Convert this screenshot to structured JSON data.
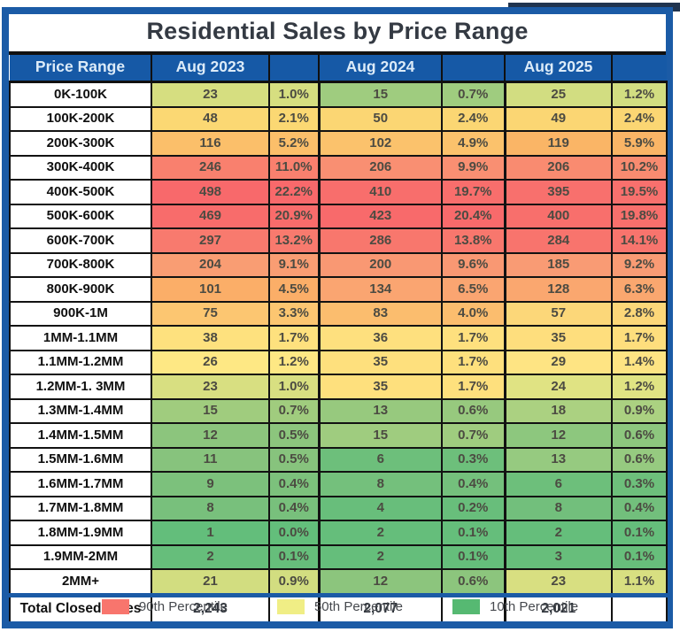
{
  "title": "Residential Sales by Price Range",
  "header": {
    "columns": [
      "Price Range",
      "Aug 2023",
      "",
      "Aug 2024",
      "",
      "Aug 2025",
      ""
    ]
  },
  "rows": [
    {
      "range": "0K-100K",
      "months": [
        {
          "count": "23",
          "pct": "1.0%",
          "color": "#d6de80"
        },
        {
          "count": "15",
          "pct": "0.7%",
          "color": "#9fcc7f"
        },
        {
          "count": "25",
          "pct": "1.2%",
          "color": "#d2dd81"
        }
      ]
    },
    {
      "range": "100K-200K",
      "months": [
        {
          "count": "48",
          "pct": "2.1%",
          "color": "#fbd873"
        },
        {
          "count": "50",
          "pct": "2.4%",
          "color": "#fbd673"
        },
        {
          "count": "49",
          "pct": "2.4%",
          "color": "#fbd673"
        }
      ]
    },
    {
      "range": "200K-300K",
      "months": [
        {
          "count": "116",
          "pct": "5.2%",
          "color": "#fbbf6a"
        },
        {
          "count": "102",
          "pct": "4.9%",
          "color": "#fbc26c"
        },
        {
          "count": "119",
          "pct": "5.9%",
          "color": "#fab566"
        }
      ]
    },
    {
      "range": "300K-400K",
      "months": [
        {
          "count": "246",
          "pct": "11.0%",
          "color": "#f9806e"
        },
        {
          "count": "206",
          "pct": "9.9%",
          "color": "#f98f72"
        },
        {
          "count": "206",
          "pct": "10.2%",
          "color": "#f98b70"
        }
      ]
    },
    {
      "range": "400K-500K",
      "months": [
        {
          "count": "498",
          "pct": "22.2%",
          "color": "#f8696b"
        },
        {
          "count": "410",
          "pct": "19.7%",
          "color": "#f86e6c"
        },
        {
          "count": "395",
          "pct": "19.5%",
          "color": "#f8706d"
        }
      ]
    },
    {
      "range": "500K-600K",
      "months": [
        {
          "count": "469",
          "pct": "20.9%",
          "color": "#f86c6b"
        },
        {
          "count": "423",
          "pct": "20.4%",
          "color": "#f86a6b"
        },
        {
          "count": "400",
          "pct": "19.8%",
          "color": "#f86f6c"
        }
      ]
    },
    {
      "range": "600K-700K",
      "months": [
        {
          "count": "297",
          "pct": "13.2%",
          "color": "#f87a6e"
        },
        {
          "count": "286",
          "pct": "13.8%",
          "color": "#f8776d"
        },
        {
          "count": "284",
          "pct": "14.1%",
          "color": "#f8746d"
        }
      ]
    },
    {
      "range": "700K-800K",
      "months": [
        {
          "count": "204",
          "pct": "9.1%",
          "color": "#f99d73"
        },
        {
          "count": "200",
          "pct": "9.6%",
          "color": "#f99873"
        },
        {
          "count": "185",
          "pct": "9.2%",
          "color": "#f99b74"
        }
      ]
    },
    {
      "range": "800K-900K",
      "months": [
        {
          "count": "101",
          "pct": "4.5%",
          "color": "#fbae68"
        },
        {
          "count": "134",
          "pct": "6.5%",
          "color": "#faa571"
        },
        {
          "count": "128",
          "pct": "6.3%",
          "color": "#faa76f"
        }
      ]
    },
    {
      "range": "900K-1M",
      "months": [
        {
          "count": "75",
          "pct": "3.3%",
          "color": "#fcc671"
        },
        {
          "count": "83",
          "pct": "4.0%",
          "color": "#fbbd6e"
        },
        {
          "count": "57",
          "pct": "2.8%",
          "color": "#fcd779"
        }
      ]
    },
    {
      "range": "1MM-1.1MM",
      "months": [
        {
          "count": "38",
          "pct": "1.7%",
          "color": "#fee17e"
        },
        {
          "count": "36",
          "pct": "1.7%",
          "color": "#fee07e"
        },
        {
          "count": "35",
          "pct": "1.7%",
          "color": "#fede7d"
        }
      ]
    },
    {
      "range": "1.1MM-1.2MM",
      "months": [
        {
          "count": "26",
          "pct": "1.2%",
          "color": "#fee884"
        },
        {
          "count": "35",
          "pct": "1.7%",
          "color": "#fee07d"
        },
        {
          "count": "29",
          "pct": "1.4%",
          "color": "#fee483"
        }
      ]
    },
    {
      "range": "1.2MM-1. 3MM",
      "months": [
        {
          "count": "23",
          "pct": "1.0%",
          "color": "#d8df81"
        },
        {
          "count": "35",
          "pct": "1.7%",
          "color": "#fee07d"
        },
        {
          "count": "24",
          "pct": "1.2%",
          "color": "#e0e383"
        }
      ]
    },
    {
      "range": "1.3MM-1.4MM",
      "months": [
        {
          "count": "15",
          "pct": "0.7%",
          "color": "#a0cc7e"
        },
        {
          "count": "13",
          "pct": "0.6%",
          "color": "#97c97e"
        },
        {
          "count": "18",
          "pct": "0.9%",
          "color": "#abd181"
        }
      ]
    },
    {
      "range": "1.4MM-1.5MM",
      "months": [
        {
          "count": "12",
          "pct": "0.5%",
          "color": "#8cc57d"
        },
        {
          "count": "15",
          "pct": "0.7%",
          "color": "#9fcc7f"
        },
        {
          "count": "12",
          "pct": "0.6%",
          "color": "#8dc77e"
        }
      ]
    },
    {
      "range": "1.5MM-1.6MM",
      "months": [
        {
          "count": "11",
          "pct": "0.5%",
          "color": "#87c37d"
        },
        {
          "count": "6",
          "pct": "0.3%",
          "color": "#6dbf7b"
        },
        {
          "count": "13",
          "pct": "0.6%",
          "color": "#96ca80"
        }
      ]
    },
    {
      "range": "1.6MM-1.7MM",
      "months": [
        {
          "count": "9",
          "pct": "0.4%",
          "color": "#7cc17c"
        },
        {
          "count": "8",
          "pct": "0.4%",
          "color": "#74c07c"
        },
        {
          "count": "6",
          "pct": "0.3%",
          "color": "#6dbf7b"
        }
      ]
    },
    {
      "range": "1.7MM-1.8MM",
      "months": [
        {
          "count": "8",
          "pct": "0.4%",
          "color": "#78c07c"
        },
        {
          "count": "4",
          "pct": "0.2%",
          "color": "#68be7b"
        },
        {
          "count": "8",
          "pct": "0.4%",
          "color": "#72bf7c"
        }
      ]
    },
    {
      "range": "1.8MM-1.9MM",
      "months": [
        {
          "count": "1",
          "pct": "0.0%",
          "color": "#63be7b"
        },
        {
          "count": "2",
          "pct": "0.1%",
          "color": "#65be7b"
        },
        {
          "count": "2",
          "pct": "0.1%",
          "color": "#65be7b"
        }
      ]
    },
    {
      "range": "1.9MM-2MM",
      "months": [
        {
          "count": "2",
          "pct": "0.1%",
          "color": "#66be7b"
        },
        {
          "count": "2",
          "pct": "0.1%",
          "color": "#65be7b"
        },
        {
          "count": "3",
          "pct": "0.1%",
          "color": "#67be7b"
        }
      ]
    },
    {
      "range": "2MM+",
      "months": [
        {
          "count": "21",
          "pct": "0.9%",
          "color": "#d2dd80"
        },
        {
          "count": "12",
          "pct": "0.6%",
          "color": "#8cc57d"
        },
        {
          "count": "23",
          "pct": "1.1%",
          "color": "#d8df81"
        }
      ]
    }
  ],
  "total_row": {
    "label": "Total Closed Sales",
    "values": [
      "2,243",
      "2,077",
      "2,021"
    ]
  },
  "legend": [
    {
      "label": "90th Percentile",
      "color": "#f8756d"
    },
    {
      "label": "50th Percentile",
      "color": "#f0ee85"
    },
    {
      "label": "10th Percentile",
      "color": "#56b972"
    }
  ],
  "colors": {
    "frame_blue": "#1b5ba6",
    "header_bg": "#1659a6",
    "header_text": "#dcebf8",
    "grid_black": "#121212",
    "title_text": "#343a43",
    "value_text": "#4c4b42",
    "top_strip": "#20344f",
    "scale_max_red": "#f8696b",
    "scale_mid_yellow": "#ffeb84",
    "scale_min_green": "#63be7b"
  },
  "chart_data": {
    "type": "table",
    "title": "Residential Sales by Price Range",
    "categories": [
      "0K-100K",
      "100K-200K",
      "200K-300K",
      "300K-400K",
      "400K-500K",
      "500K-600K",
      "600K-700K",
      "700K-800K",
      "800K-900K",
      "900K-1M",
      "1MM-1.1MM",
      "1.1MM-1.2MM",
      "1.2MM-1. 3MM",
      "1.3MM-1.4MM",
      "1.4MM-1.5MM",
      "1.5MM-1.6MM",
      "1.6MM-1.7MM",
      "1.7MM-1.8MM",
      "1.8MM-1.9MM",
      "1.9MM-2MM",
      "2MM+"
    ],
    "series": [
      {
        "name": "Aug 2023",
        "counts": [
          23,
          48,
          116,
          246,
          498,
          469,
          297,
          204,
          101,
          75,
          38,
          26,
          23,
          15,
          12,
          11,
          9,
          8,
          1,
          2,
          21
        ],
        "percents": [
          1.0,
          2.1,
          5.2,
          11.0,
          22.2,
          20.9,
          13.2,
          9.1,
          4.5,
          3.3,
          1.7,
          1.2,
          1.0,
          0.7,
          0.5,
          0.5,
          0.4,
          0.4,
          0.0,
          0.1,
          0.9
        ],
        "total": 2243
      },
      {
        "name": "Aug 2024",
        "counts": [
          15,
          50,
          102,
          206,
          410,
          423,
          286,
          200,
          134,
          83,
          36,
          35,
          35,
          13,
          15,
          6,
          8,
          4,
          2,
          2,
          12
        ],
        "percents": [
          0.7,
          2.4,
          4.9,
          9.9,
          19.7,
          20.4,
          13.8,
          9.6,
          6.5,
          4.0,
          1.7,
          1.7,
          1.7,
          0.6,
          0.7,
          0.3,
          0.4,
          0.2,
          0.1,
          0.1,
          0.6
        ],
        "total": 2077
      },
      {
        "name": "Aug 2025",
        "counts": [
          25,
          49,
          119,
          206,
          395,
          400,
          284,
          185,
          128,
          57,
          35,
          29,
          24,
          18,
          12,
          13,
          6,
          8,
          2,
          3,
          23
        ],
        "percents": [
          1.2,
          2.4,
          5.9,
          10.2,
          19.5,
          19.8,
          14.1,
          9.2,
          6.3,
          2.8,
          1.7,
          1.4,
          1.2,
          0.9,
          0.6,
          0.6,
          0.3,
          0.4,
          0.1,
          0.1,
          1.1
        ],
        "total": 2021
      }
    ],
    "legend_entries": [
      "90th Percentile",
      "50th Percentile",
      "10th Percentile"
    ],
    "color_scale": {
      "min": "#63be7b",
      "mid": "#ffeb84",
      "max": "#f8696b"
    },
    "grid": true,
    "legend_position": "bottom"
  }
}
